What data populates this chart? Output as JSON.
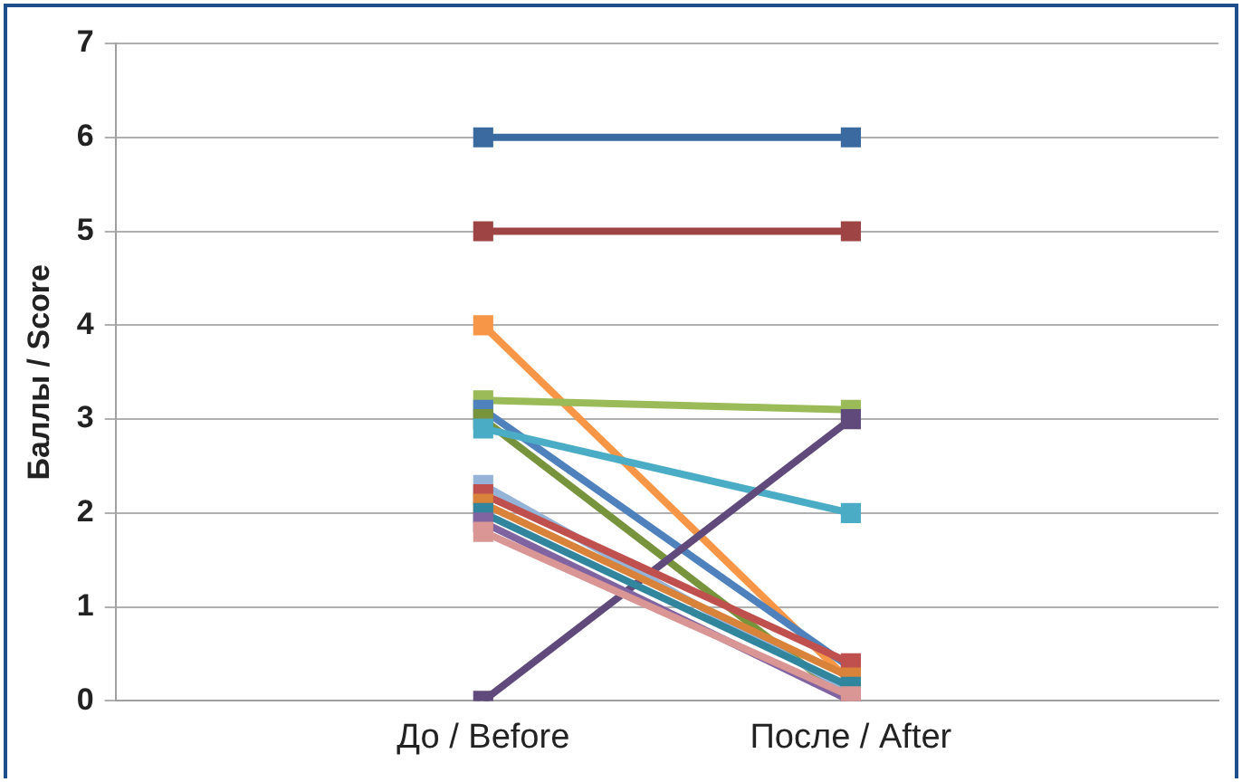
{
  "chart_data": {
    "type": "line",
    "categories": [
      null,
      "До / Before",
      "После / After",
      null
    ],
    "ylabel": "Баллы / Score",
    "ylim": [
      0,
      7
    ],
    "yticks": [
      0,
      1,
      2,
      3,
      4,
      5,
      6,
      7
    ],
    "grid": "y",
    "legend": false,
    "marker": "square",
    "line_style": "solid",
    "series": [
      {
        "color": "#3a6aa0",
        "values": [
          null,
          6,
          6,
          null
        ]
      },
      {
        "color": "#9e4444",
        "values": [
          null,
          5,
          5,
          null
        ]
      },
      {
        "color": "#f79646",
        "values": [
          null,
          4,
          0.2,
          null
        ]
      },
      {
        "color": "#9bbb59",
        "values": [
          null,
          3.2,
          3.1,
          null
        ]
      },
      {
        "color": "#4f81bd",
        "values": [
          null,
          3.1,
          0.35,
          null
        ]
      },
      {
        "color": "#77933c",
        "values": [
          null,
          3,
          0,
          null
        ]
      },
      {
        "color": "#4bacc6",
        "values": [
          null,
          2.9,
          2,
          null
        ]
      },
      {
        "color": "#604a7b",
        "values": [
          null,
          0,
          3,
          null
        ]
      },
      {
        "color": "#95b3d7",
        "values": [
          null,
          2.3,
          0.1,
          null
        ]
      },
      {
        "color": "#c0504d",
        "values": [
          null,
          2.2,
          0.4,
          null
        ]
      },
      {
        "color": "#d8823a",
        "values": [
          null,
          2.1,
          0.25,
          null
        ]
      },
      {
        "color": "#31859c",
        "values": [
          null,
          2,
          0.15,
          null
        ]
      },
      {
        "color": "#8064a2",
        "values": [
          null,
          1.9,
          0,
          null
        ]
      },
      {
        "color": "#d99694",
        "values": [
          null,
          1.8,
          0.05,
          null
        ]
      }
    ]
  }
}
